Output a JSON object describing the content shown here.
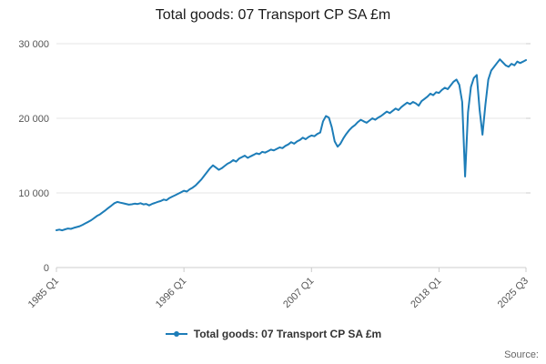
{
  "title": "Total goods: 07 Transport CP SA £m",
  "legend": {
    "label": "Total goods: 07 Transport CP SA £m"
  },
  "source": "Source:",
  "colors": {
    "line": "#1d7db8",
    "grid": "#e6e6e6",
    "axis": "#cccccc",
    "tick_text": "#555555"
  },
  "chart_data": {
    "type": "line",
    "title": "Total goods: 07 Transport CP SA £m",
    "xlabel": "",
    "ylabel": "",
    "ylim": [
      0,
      30000
    ],
    "grid": "horizontal",
    "legend_position": "bottom",
    "x_unit": "quarter",
    "x_start": "1985 Q1",
    "x_end": "2025 Q3",
    "x_tick_labels": [
      "1985 Q1",
      "1996 Q1",
      "2007 Q1",
      "2018 Q1",
      "2025 Q3"
    ],
    "x_tick_indices": [
      0,
      44,
      88,
      132,
      162
    ],
    "y_ticks": [
      0,
      10000,
      20000,
      30000
    ],
    "y_tick_labels": [
      "0",
      "10 000",
      "20 000",
      "30 000"
    ],
    "series": [
      {
        "name": "Total goods: 07 Transport CP SA £m",
        "values": [
          5000,
          5080,
          4990,
          5120,
          5230,
          5180,
          5320,
          5430,
          5540,
          5720,
          5930,
          6120,
          6340,
          6620,
          6910,
          7120,
          7420,
          7700,
          8010,
          8310,
          8620,
          8790,
          8700,
          8610,
          8520,
          8430,
          8470,
          8560,
          8510,
          8620,
          8460,
          8520,
          8330,
          8520,
          8660,
          8810,
          8920,
          9110,
          9030,
          9320,
          9510,
          9700,
          9890,
          10090,
          10290,
          10180,
          10490,
          10710,
          11000,
          11400,
          11800,
          12300,
          12800,
          13300,
          13700,
          13400,
          13100,
          13300,
          13600,
          13900,
          14100,
          14400,
          14200,
          14600,
          14800,
          15000,
          14700,
          14900,
          15100,
          15300,
          15200,
          15500,
          15400,
          15600,
          15800,
          15700,
          15900,
          16100,
          16000,
          16300,
          16500,
          16800,
          16600,
          16900,
          17100,
          17400,
          17200,
          17500,
          17700,
          17600,
          17900,
          18100,
          19600,
          20300,
          20100,
          18800,
          16900,
          16200,
          16600,
          17300,
          17900,
          18400,
          18800,
          19100,
          19500,
          19800,
          19600,
          19400,
          19700,
          20000,
          19800,
          20100,
          20300,
          20600,
          20900,
          20700,
          21000,
          21300,
          21100,
          21500,
          21800,
          22100,
          21900,
          22200,
          22000,
          21700,
          22300,
          22600,
          22900,
          23300,
          23100,
          23500,
          23400,
          23800,
          24100,
          23900,
          24400,
          24900,
          25200,
          24500,
          22200,
          12200,
          20800,
          24200,
          25400,
          25800,
          21200,
          17800,
          21800,
          25200,
          26400,
          26900,
          27400,
          27900,
          27500,
          27100,
          26900,
          27300,
          27100,
          27600,
          27400,
          27600,
          27800
        ]
      }
    ]
  }
}
